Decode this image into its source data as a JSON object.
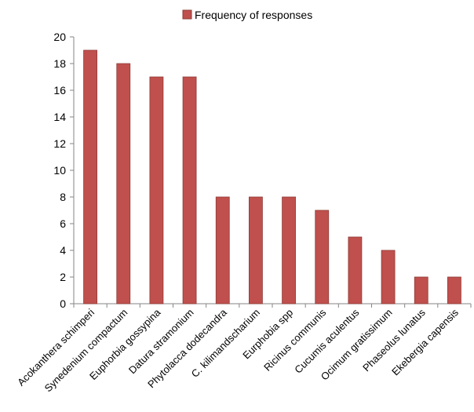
{
  "chart_data": {
    "type": "bar",
    "title": "",
    "xlabel": "",
    "ylabel": "",
    "ylim": [
      0,
      20
    ],
    "yticks": [
      0,
      2,
      4,
      6,
      8,
      10,
      12,
      14,
      16,
      18,
      20
    ],
    "grid": false,
    "legend_position": "top",
    "categories": [
      "Acokanthera schimperi",
      "Synedenium compactum",
      "Euphorbia gossypina",
      "Datura stramonium",
      "Phytolacca dodecandra",
      "C. kilimandscharium",
      "Eurphobia spp",
      "Ricinus communis",
      "Cucumis aculentus",
      "Ocimum gratissimum",
      "Phaseolus lunatus",
      "Ekebergia capensis"
    ],
    "series": [
      {
        "name": "Frequency of responses",
        "color": "#c0504d",
        "values": [
          19,
          18,
          17,
          17,
          8,
          8,
          8,
          7,
          5,
          4,
          2,
          2
        ]
      }
    ]
  }
}
